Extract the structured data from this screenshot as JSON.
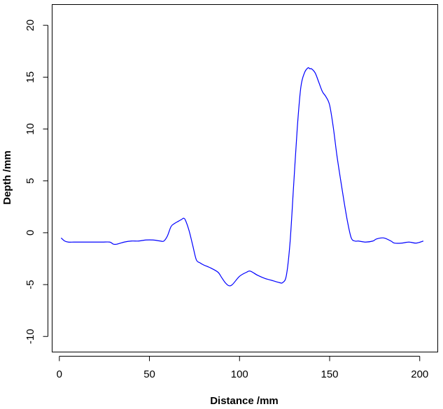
{
  "chart_data": {
    "type": "line",
    "title": "",
    "xlabel": "Distance /mm",
    "ylabel": "Depth /mm",
    "xlim": [
      -4,
      210
    ],
    "ylim": [
      -11.5,
      22
    ],
    "xticks": [
      0,
      50,
      100,
      150,
      200
    ],
    "yticks": [
      -10,
      -5,
      0,
      5,
      10,
      15,
      20
    ],
    "xtick_labels": [
      "0",
      "50",
      "100",
      "150",
      "200"
    ],
    "ytick_labels": [
      "-10",
      "-5",
      "0",
      "5",
      "10",
      "15",
      "20"
    ],
    "grid": false,
    "series": [
      {
        "color": "#0000ff",
        "x": [
          1,
          3,
          5,
          8,
          12,
          16,
          20,
          24,
          28,
          30,
          32,
          36,
          40,
          44,
          48,
          52,
          56,
          58,
          60,
          62,
          64,
          66,
          68,
          69,
          70,
          72,
          74,
          76,
          78,
          80,
          84,
          88,
          90,
          92,
          94,
          96,
          100,
          104,
          106,
          110,
          114,
          118,
          122,
          124,
          126,
          128,
          130,
          132,
          134,
          136,
          138,
          139,
          140,
          142,
          144,
          146,
          148,
          150,
          152,
          154,
          156,
          158,
          160,
          162,
          164,
          166,
          170,
          174,
          176,
          180,
          184,
          186,
          190,
          194,
          198,
          202
        ],
        "y": [
          -0.5,
          -0.8,
          -0.9,
          -0.9,
          -0.9,
          -0.9,
          -0.9,
          -0.9,
          -0.9,
          -1.1,
          -1.1,
          -0.9,
          -0.8,
          -0.8,
          -0.7,
          -0.7,
          -0.8,
          -0.8,
          -0.3,
          0.6,
          0.9,
          1.1,
          1.3,
          1.4,
          1.2,
          0.2,
          -1.2,
          -2.6,
          -2.9,
          -3.1,
          -3.4,
          -3.8,
          -4.3,
          -4.8,
          -5.1,
          -5.0,
          -4.2,
          -3.8,
          -3.7,
          -4.1,
          -4.4,
          -4.6,
          -4.8,
          -4.8,
          -4.1,
          -1.0,
          4.5,
          10.0,
          14.0,
          15.4,
          15.9,
          15.8,
          15.8,
          15.4,
          14.5,
          13.6,
          13.1,
          12.3,
          10.2,
          7.5,
          5.2,
          3.0,
          1.0,
          -0.5,
          -0.8,
          -0.8,
          -0.9,
          -0.8,
          -0.6,
          -0.5,
          -0.8,
          -1.0,
          -1.0,
          -0.9,
          -1.0,
          -0.8
        ]
      }
    ]
  }
}
